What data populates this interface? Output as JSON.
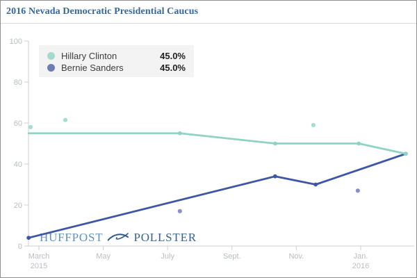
{
  "header": {
    "title": "2016 Nevada Democratic Presidential Caucus"
  },
  "legend": {
    "items": [
      {
        "label": "Hillary Clinton",
        "value": "45.0%",
        "color": "#a2dacc"
      },
      {
        "label": "Bernie Sanders",
        "value": "45.0%",
        "color": "#6c7db4"
      }
    ]
  },
  "watermark": {
    "left": "HUFFPOST",
    "right": "POLLSTER",
    "logo_icon": "pollster-bird-logo",
    "left_color": "#5d90c7",
    "right_color": "#36638e",
    "logo_color": "#2d5a8c"
  },
  "colors": {
    "title": "#35689c",
    "axis": "#cfcfcf",
    "tick_label": "#b9bdc1",
    "legend_bg": "#f3f3f3",
    "clinton_line": "#8fd3c5",
    "clinton_poll_dot": "#a6ddd2",
    "sanders_line": "#3d57a6",
    "sanders_poll_dot": "#8992c8"
  },
  "chart_data": {
    "type": "line",
    "title": "2016 Nevada Democratic Presidential Caucus",
    "xlabel": "",
    "ylabel": "",
    "ylim": [
      0,
      100
    ],
    "y_ticks": [
      0,
      20,
      40,
      60,
      80,
      100
    ],
    "x_unit": "months since March 2015",
    "x_ticks": [
      {
        "t": 0,
        "label": "March",
        "sub": "2015"
      },
      {
        "t": 2,
        "label": "May",
        "sub": ""
      },
      {
        "t": 4,
        "label": "July",
        "sub": ""
      },
      {
        "t": 6,
        "label": "Sept.",
        "sub": ""
      },
      {
        "t": 8,
        "label": "Nov.",
        "sub": ""
      },
      {
        "t": 10,
        "label": "Jan.",
        "sub": "2016"
      }
    ],
    "grid": false,
    "legend_position": "top-left",
    "series": [
      {
        "name": "Bernie Sanders",
        "final_value": "45.0%",
        "line_color": "#3d57a6",
        "poll_dot_color": "#8992c8",
        "trend": [
          [
            -0.32,
            4
          ],
          [
            7.34,
            34
          ],
          [
            8.6,
            30
          ],
          [
            11.4,
            45
          ]
        ],
        "trend_markers": [
          [
            -0.32,
            4
          ],
          [
            7.34,
            34
          ],
          [
            8.6,
            30
          ],
          [
            11.4,
            45
          ]
        ],
        "poll_points": [
          [
            4.38,
            17
          ],
          [
            9.91,
            27
          ]
        ]
      },
      {
        "name": "Hillary Clinton",
        "final_value": "45.0%",
        "line_color": "#8fd3c5",
        "poll_dot_color": "#a6ddd2",
        "trend": [
          [
            -0.32,
            55
          ],
          [
            4.38,
            55
          ],
          [
            7.34,
            50
          ],
          [
            9.94,
            50
          ],
          [
            11.4,
            45
          ]
        ],
        "trend_markers": [
          [
            4.38,
            55
          ],
          [
            7.34,
            50
          ],
          [
            9.94,
            50
          ],
          [
            11.4,
            45
          ]
        ],
        "poll_points": [
          [
            -0.26,
            58
          ],
          [
            0.82,
            61.5
          ],
          [
            8.53,
            59
          ]
        ]
      }
    ]
  }
}
